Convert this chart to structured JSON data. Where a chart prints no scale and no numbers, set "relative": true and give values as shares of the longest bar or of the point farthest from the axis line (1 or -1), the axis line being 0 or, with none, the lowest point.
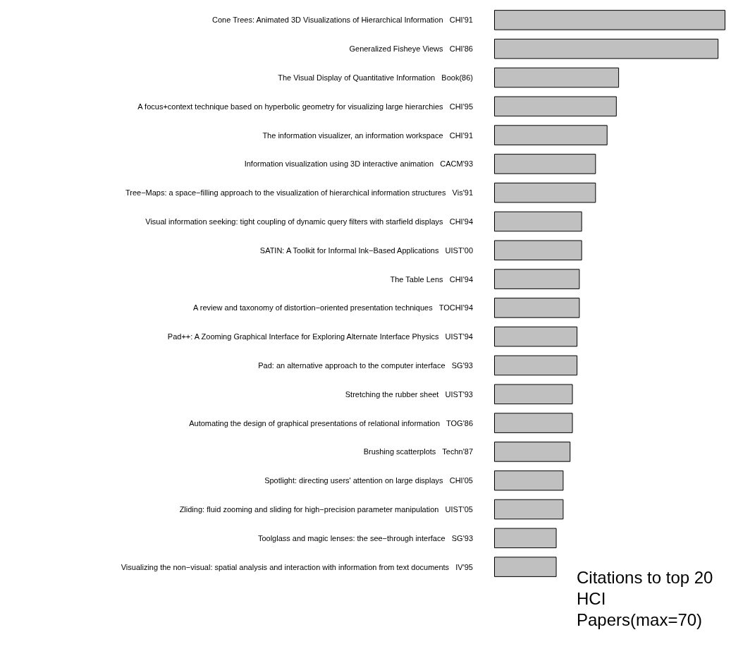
{
  "chart_data": {
    "type": "bar",
    "orientation": "horizontal",
    "relative": true,
    "title": "Citations to top 20 HCI Papers(max=70)",
    "color": "#c0c0c0",
    "categories": [
      "Cone Trees: Animated 3D Visualizations of Hierarchical Information   CHI'91",
      "Generalized Fisheye Views   CHI'86",
      "The Visual Display of Quantitative Information   Book(86)",
      "A focus+context technique based on hyperbolic geometry for visualizing large hierarchies   CHI'95",
      "The information visualizer, an information workspace   CHI'91",
      "Information visualization using 3D interactive animation   CACM'93",
      "Tree−Maps: a space−filling approach to the visualization of hierarchical information structures   Vis'91",
      "Visual information seeking: tight coupling of dynamic query filters with starfield displays   CHI'94",
      "SATIN: A Toolkit for Informal Ink−Based Applications   UIST'00",
      "The Table Lens   CHI'94",
      "A review and taxonomy of distortion−oriented presentation techniques   TOCHI'94",
      "Pad++: A Zooming Graphical Interface for Exploring Alternate Interface Physics   UIST'94",
      "Pad: an alternative approach to the computer interface   SG'93",
      "Stretching the rubber sheet   UIST'93",
      "Automating the design of graphical presentations of relational information   TOG'86",
      "Brushing scatterplots   Techn'87",
      "Spotlight: directing users' attention on large displays   CHI'05",
      "Zliding: fluid zooming and sliding for high−precision parameter manipulation   UIST'05",
      "Toolglass and magic lenses: the see−through interface   SG'93",
      "Visualizing the non−visual: spatial analysis and interaction with information from text documents   IV'95"
    ],
    "values": [
      1,
      0.97,
      0.54,
      0.53,
      0.49,
      0.44,
      0.44,
      0.38,
      0.38,
      0.37,
      0.37,
      0.36,
      0.36,
      0.34,
      0.34,
      0.33,
      0.3,
      0.3,
      0.27,
      0.27
    ]
  }
}
